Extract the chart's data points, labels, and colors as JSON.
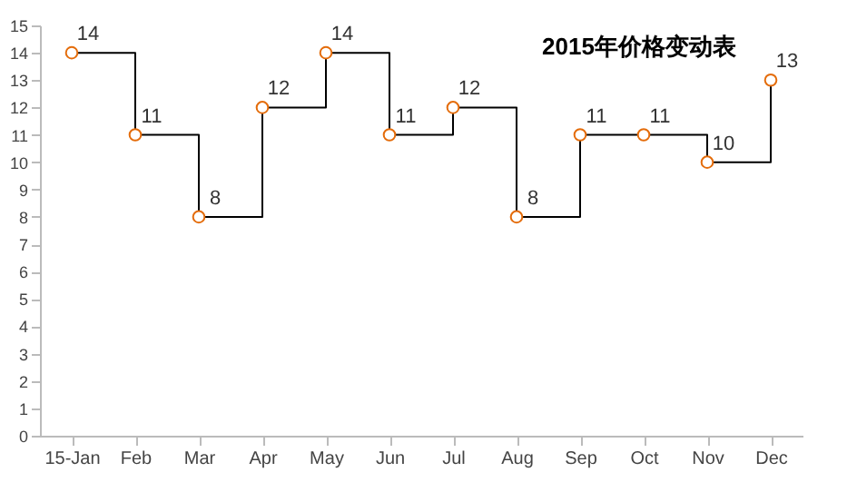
{
  "chart_data": {
    "type": "step",
    "title": "2015年价格变动表",
    "categories": [
      "15-Jan",
      "Feb",
      "Mar",
      "Apr",
      "May",
      "Jun",
      "Jul",
      "Aug",
      "Sep",
      "Oct",
      "Nov",
      "Dec"
    ],
    "series": [
      {
        "color": "#e46c0a",
        "values": [
          14,
          11,
          8,
          12,
          14,
          11,
          12,
          8,
          11,
          11,
          10,
          13
        ]
      }
    ],
    "ylim": [
      0,
      15
    ],
    "yticks": [
      0,
      1,
      2,
      3,
      4,
      5,
      6,
      7,
      8,
      9,
      10,
      11,
      12,
      13,
      14,
      15
    ],
    "data_labels": true,
    "marker": "circle",
    "grid": false
  }
}
